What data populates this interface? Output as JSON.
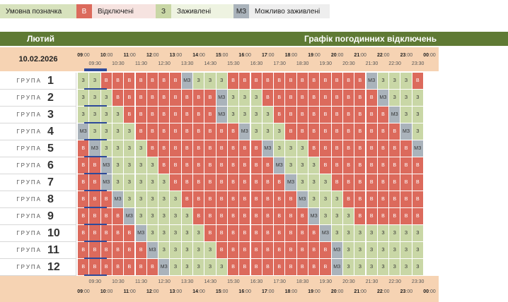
{
  "legend": [
    {
      "label": "Умовна позначка",
      "bg": "#d7e2bd"
    },
    {
      "label": "В",
      "bg": "#dc6a5c"
    },
    {
      "label": "Відключені",
      "bg": "#f6e3e0"
    },
    {
      "label": "З",
      "bg": "#c9d7a6"
    },
    {
      "label": "Заживлені",
      "bg": "#eef3e1"
    },
    {
      "label": "МЗ",
      "bg": "#aab3bb"
    },
    {
      "label": "Можливо заживлені",
      "bg": "#eeeeee"
    }
  ],
  "header": {
    "month": "Лютий",
    "title": "Графік погодинних відключень"
  },
  "date": "10.02.2026",
  "group_word": "ГРУПА",
  "hours": [
    "09:00",
    "10:00",
    "11:00",
    "12:00",
    "13:00",
    "14:00",
    "15:00",
    "16:00",
    "17:00",
    "18:00",
    "19:00",
    "20:00",
    "21:00",
    "22:00",
    "23:00",
    "00:00"
  ],
  "half_hours": [
    "09:30",
    "10:30",
    "11:30",
    "12:30",
    "13:30",
    "14:30",
    "15:30",
    "16:30",
    "17:30",
    "18:30",
    "19:30",
    "20:30",
    "21:30",
    "22:30",
    "23:30"
  ],
  "groups": [
    {
      "n": "1",
      "cells": [
        "З",
        "З",
        "В",
        "В",
        "В",
        "В",
        "В",
        "В",
        "В",
        "МЗ",
        "З",
        "З",
        "З",
        "В",
        "В",
        "В",
        "В",
        "В",
        "В",
        "В",
        "В",
        "В",
        "В",
        "В",
        "В",
        "МЗ",
        "З",
        "З",
        "З",
        "В"
      ]
    },
    {
      "n": "2",
      "cells": [
        "З",
        "З",
        "З",
        "В",
        "В",
        "В",
        "В",
        "В",
        "В",
        "В",
        "В",
        "В",
        "МЗ",
        "З",
        "З",
        "З",
        "В",
        "В",
        "В",
        "В",
        "В",
        "В",
        "В",
        "В",
        "В",
        "В",
        "МЗ",
        "З",
        "З",
        "З"
      ]
    },
    {
      "n": "3",
      "cells": [
        "З",
        "З",
        "З",
        "З",
        "В",
        "В",
        "В",
        "В",
        "В",
        "В",
        "В",
        "В",
        "МЗ",
        "З",
        "З",
        "З",
        "З",
        "В",
        "В",
        "В",
        "В",
        "В",
        "В",
        "В",
        "В",
        "В",
        "В",
        "МЗ",
        "З",
        "З"
      ]
    },
    {
      "n": "4",
      "cells": [
        "МЗ",
        "З",
        "З",
        "З",
        "З",
        "В",
        "В",
        "В",
        "В",
        "В",
        "В",
        "В",
        "В",
        "В",
        "МЗ",
        "З",
        "З",
        "З",
        "В",
        "В",
        "В",
        "В",
        "В",
        "В",
        "В",
        "В",
        "В",
        "В",
        "МЗ",
        "З"
      ]
    },
    {
      "n": "5",
      "cells": [
        "В",
        "МЗ",
        "З",
        "З",
        "З",
        "З",
        "В",
        "В",
        "В",
        "В",
        "В",
        "В",
        "В",
        "В",
        "В",
        "В",
        "МЗ",
        "З",
        "З",
        "З",
        "В",
        "В",
        "В",
        "В",
        "В",
        "В",
        "В",
        "В",
        "В",
        "МЗ"
      ]
    },
    {
      "n": "6",
      "cells": [
        "В",
        "В",
        "МЗ",
        "З",
        "З",
        "З",
        "З",
        "В",
        "В",
        "В",
        "В",
        "В",
        "В",
        "В",
        "В",
        "В",
        "В",
        "МЗ",
        "З",
        "З",
        "З",
        "В",
        "В",
        "В",
        "В",
        "В",
        "В",
        "В",
        "В",
        "В"
      ]
    },
    {
      "n": "7",
      "cells": [
        "В",
        "В",
        "МЗ",
        "З",
        "З",
        "З",
        "З",
        "З",
        "В",
        "В",
        "В",
        "В",
        "В",
        "В",
        "В",
        "В",
        "В",
        "В",
        "МЗ",
        "З",
        "З",
        "З",
        "В",
        "В",
        "В",
        "В",
        "В",
        "В",
        "В",
        "В"
      ]
    },
    {
      "n": "8",
      "cells": [
        "В",
        "В",
        "В",
        "МЗ",
        "З",
        "З",
        "З",
        "З",
        "З",
        "В",
        "В",
        "В",
        "В",
        "В",
        "В",
        "В",
        "В",
        "В",
        "В",
        "МЗ",
        "З",
        "З",
        "З",
        "В",
        "В",
        "В",
        "В",
        "В",
        "В",
        "В"
      ]
    },
    {
      "n": "9",
      "cells": [
        "В",
        "В",
        "В",
        "В",
        "МЗ",
        "З",
        "З",
        "З",
        "З",
        "З",
        "В",
        "В",
        "В",
        "В",
        "В",
        "В",
        "В",
        "В",
        "В",
        "В",
        "МЗ",
        "З",
        "З",
        "З",
        "В",
        "В",
        "В",
        "В",
        "В",
        "В"
      ]
    },
    {
      "n": "10",
      "cells": [
        "В",
        "В",
        "В",
        "В",
        "В",
        "МЗ",
        "З",
        "З",
        "З",
        "З",
        "З",
        "В",
        "В",
        "В",
        "В",
        "В",
        "В",
        "В",
        "В",
        "В",
        "В",
        "МЗ",
        "З",
        "З",
        "З",
        "З",
        "З",
        "З",
        "З",
        "З"
      ]
    },
    {
      "n": "11",
      "cells": [
        "В",
        "В",
        "В",
        "В",
        "В",
        "В",
        "МЗ",
        "З",
        "З",
        "З",
        "З",
        "З",
        "В",
        "В",
        "В",
        "В",
        "В",
        "В",
        "В",
        "В",
        "В",
        "В",
        "МЗ",
        "З",
        "З",
        "З",
        "З",
        "З",
        "З",
        "З"
      ]
    },
    {
      "n": "12",
      "cells": [
        "В",
        "В",
        "В",
        "В",
        "В",
        "В",
        "В",
        "МЗ",
        "З",
        "З",
        "З",
        "З",
        "З",
        "В",
        "В",
        "В",
        "В",
        "В",
        "В",
        "В",
        "В",
        "В",
        "МЗ",
        "З",
        "З",
        "З",
        "З",
        "З",
        "З",
        "З"
      ]
    }
  ]
}
